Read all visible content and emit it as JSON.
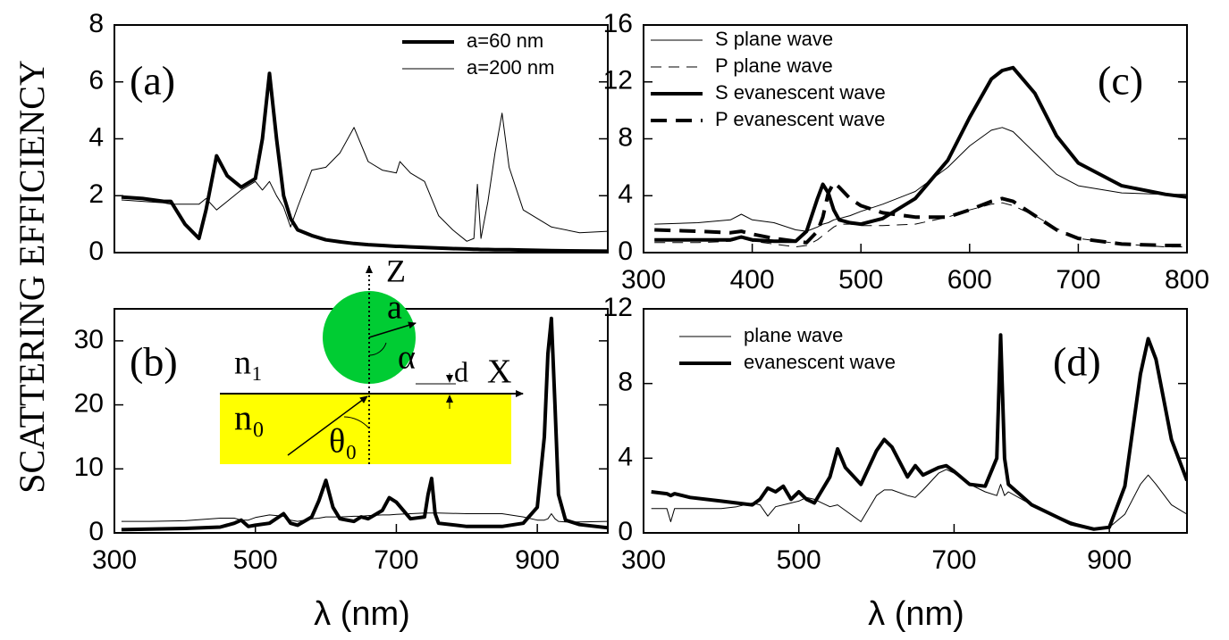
{
  "y_label": "SCATTERING EFFICIENCY",
  "diagram": {
    "labels": [
      "Z",
      "X",
      "a",
      "α",
      "d",
      "n₁",
      "n₀",
      "θ₀"
    ]
  },
  "chart_data": [
    {
      "type": "line",
      "annotation": "(a)",
      "legend": "upper right",
      "x": [
        310,
        340,
        370,
        380,
        400,
        420,
        430,
        445,
        460,
        480,
        500,
        510,
        520,
        530,
        540,
        550,
        560,
        580,
        600,
        620,
        640,
        660,
        680,
        700,
        705,
        720,
        740,
        760,
        780,
        800,
        810,
        815,
        820,
        830,
        840,
        850,
        860,
        880,
        920,
        960,
        1000
      ],
      "xlim": [
        300,
        1000
      ],
      "ylim": [
        0,
        8
      ],
      "yticks": [
        0,
        2,
        4,
        6,
        8
      ],
      "series": [
        {
          "name": "a=60 nm",
          "color": "#000000",
          "width": 4,
          "style": "solid",
          "values": [
            1.95,
            1.9,
            1.8,
            1.8,
            1.0,
            0.5,
            1.5,
            3.4,
            2.7,
            2.3,
            2.6,
            4.0,
            6.3,
            4.0,
            2.0,
            1.2,
            0.8,
            0.6,
            0.45,
            0.38,
            0.32,
            0.28,
            0.25,
            0.22,
            0.22,
            0.2,
            0.18,
            0.16,
            0.14,
            0.13,
            0.12,
            0.12,
            0.11,
            0.11,
            0.1,
            0.1,
            0.1,
            0.09,
            0.07,
            0.06,
            0.05
          ]
        },
        {
          "name": "a=200 nm",
          "color": "#000000",
          "width": 1,
          "style": "solid",
          "values": [
            1.85,
            1.8,
            1.75,
            1.7,
            1.7,
            1.7,
            1.9,
            1.5,
            1.8,
            2.2,
            2.5,
            2.2,
            2.5,
            2.0,
            1.6,
            0.9,
            1.6,
            2.9,
            3.0,
            3.5,
            4.4,
            3.2,
            2.9,
            2.8,
            3.2,
            2.8,
            2.5,
            1.3,
            0.8,
            0.4,
            0.5,
            2.4,
            0.5,
            1.8,
            3.5,
            4.9,
            3.0,
            1.5,
            0.9,
            0.7,
            0.75
          ]
        }
      ]
    },
    {
      "type": "line",
      "annotation": "(b)",
      "x_label": "λ (nm)",
      "x": [
        310,
        350,
        400,
        450,
        470,
        480,
        490,
        500,
        520,
        540,
        550,
        560,
        580,
        590,
        600,
        610,
        620,
        640,
        650,
        660,
        680,
        690,
        700,
        720,
        740,
        745,
        750,
        755,
        760,
        800,
        850,
        880,
        900,
        910,
        915,
        920,
        925,
        930,
        940,
        960,
        1000
      ],
      "xlim": [
        300,
        1000
      ],
      "xticks": [
        300,
        500,
        700,
        900
      ],
      "ylim": [
        0,
        35
      ],
      "yticks": [
        0,
        10,
        20,
        30
      ],
      "series": [
        {
          "color": "#000000",
          "width": 4,
          "style": "solid",
          "values": [
            0.5,
            0.6,
            0.7,
            0.9,
            1.5,
            2.0,
            1.0,
            1.2,
            1.5,
            3.0,
            1.5,
            1.2,
            2.5,
            5,
            8.2,
            4,
            2.2,
            1.8,
            2.5,
            2.2,
            3.5,
            5.5,
            4.8,
            2.2,
            2.5,
            6,
            8.5,
            3,
            1.5,
            1.0,
            1.0,
            1.5,
            4,
            15,
            28,
            33.5,
            20,
            6,
            2,
            1.3,
            0.8
          ]
        },
        {
          "color": "#000000",
          "width": 1,
          "style": "solid",
          "values": [
            1.8,
            1.8,
            1.9,
            2.3,
            2.3,
            2.0,
            2.0,
            2.4,
            2.8,
            2.6,
            2.0,
            1.8,
            2.2,
            2.3,
            2.5,
            2.5,
            2.5,
            2.6,
            2.6,
            2.7,
            2.8,
            2.8,
            2.9,
            3.0,
            3.1,
            3.1,
            3.1,
            3.1,
            3.1,
            3.0,
            3.0,
            2.5,
            2.0,
            2.0,
            2.2,
            3.0,
            2.2,
            1.8,
            1.7,
            1.7,
            1.8
          ]
        }
      ]
    },
    {
      "type": "line",
      "annotation": "(c)",
      "legend": "upper left",
      "x": [
        310,
        350,
        380,
        390,
        400,
        420,
        440,
        450,
        460,
        465,
        470,
        475,
        480,
        490,
        500,
        520,
        550,
        580,
        600,
        620,
        630,
        640,
        660,
        680,
        700,
        740,
        780,
        800
      ],
      "xlim": [
        300,
        800
      ],
      "xticks": [
        300,
        400,
        500,
        600,
        700,
        800
      ],
      "ylim": [
        0,
        16
      ],
      "yticks": [
        0,
        4,
        8,
        12,
        16
      ],
      "series": [
        {
          "name": "S plane wave",
          "color": "#000000",
          "width": 1,
          "style": "solid",
          "values": [
            2.0,
            2.1,
            2.3,
            2.7,
            2.3,
            2.1,
            1.6,
            1.5,
            1.8,
            2.0,
            2.1,
            2.3,
            2.4,
            2.6,
            2.9,
            3.4,
            4.3,
            6,
            7.5,
            8.6,
            8.8,
            8.5,
            7,
            5.5,
            4.7,
            4.2,
            4.1,
            4.1
          ]
        },
        {
          "name": "P plane wave",
          "color": "#000000",
          "width": 1,
          "style": "dashed",
          "values": [
            0.7,
            0.7,
            0.8,
            1.0,
            0.8,
            0.6,
            0.4,
            0.5,
            0.9,
            1.2,
            1.5,
            1.8,
            2.0,
            2.0,
            1.9,
            1.9,
            2.0,
            2.5,
            3.0,
            3.4,
            3.5,
            3.3,
            2.6,
            1.7,
            1.0,
            0.6,
            0.4,
            0.4
          ]
        },
        {
          "name": "S evanescent wave",
          "color": "#000000",
          "width": 4,
          "style": "solid",
          "values": [
            0.9,
            0.9,
            0.9,
            1.1,
            0.9,
            0.8,
            0.8,
            1.5,
            3.8,
            4.8,
            4.2,
            3.0,
            2.3,
            2.1,
            2.0,
            2.4,
            3.8,
            6.5,
            9.5,
            12.2,
            12.8,
            13.0,
            11.2,
            8.2,
            6.3,
            4.7,
            4.1,
            3.9
          ]
        },
        {
          "name": "P evanescent wave",
          "color": "#000000",
          "width": 4,
          "style": "dashed",
          "values": [
            1.6,
            1.5,
            1.4,
            1.5,
            1.3,
            1.0,
            0.8,
            0.7,
            1.5,
            2.5,
            4.2,
            4.9,
            4.6,
            3.8,
            3.3,
            2.8,
            2.5,
            2.5,
            3.0,
            3.6,
            3.8,
            3.6,
            2.6,
            1.6,
            1.0,
            0.6,
            0.5,
            0.5
          ]
        }
      ]
    },
    {
      "type": "line",
      "annotation": "(d)",
      "legend": "upper left",
      "x_label": "λ (nm)",
      "x": [
        310,
        330,
        335,
        340,
        360,
        400,
        420,
        440,
        450,
        460,
        470,
        480,
        490,
        500,
        510,
        520,
        540,
        550,
        560,
        580,
        600,
        610,
        620,
        640,
        650,
        660,
        680,
        690,
        700,
        720,
        740,
        755,
        760,
        765,
        770,
        800,
        850,
        880,
        900,
        920,
        940,
        950,
        960,
        980,
        1000
      ],
      "xlim": [
        300,
        1000
      ],
      "xticks": [
        300,
        500,
        700,
        900
      ],
      "ylim": [
        0,
        12
      ],
      "yticks": [
        0,
        4,
        8,
        12
      ],
      "series": [
        {
          "name": "plane wave",
          "color": "#000000",
          "width": 1,
          "style": "solid",
          "values": [
            1.3,
            1.3,
            0.6,
            1.3,
            1.3,
            1.3,
            1.4,
            1.6,
            1.5,
            0.9,
            1.4,
            1.5,
            1.6,
            1.7,
            1.9,
            1.8,
            1.4,
            1.5,
            1.2,
            0.6,
            2.0,
            2.3,
            2.3,
            2.0,
            1.9,
            2.3,
            3.2,
            3.4,
            3.2,
            2.6,
            2.2,
            2.0,
            2.6,
            2.0,
            2.2,
            1.5,
            0.6,
            0.2,
            0.3,
            1.0,
            2.6,
            3.1,
            2.6,
            1.5,
            1.0
          ]
        },
        {
          "name": "evanescent wave",
          "color": "#000000",
          "width": 4,
          "style": "solid",
          "values": [
            2.2,
            2.1,
            2.0,
            2.1,
            1.9,
            1.7,
            1.6,
            1.5,
            1.8,
            2.4,
            2.2,
            2.5,
            1.8,
            2.2,
            1.8,
            1.6,
            3.0,
            4.5,
            3.5,
            2.6,
            4.4,
            5.0,
            4.6,
            3.0,
            3.6,
            3.1,
            3.5,
            3.6,
            3.3,
            2.6,
            2.5,
            4,
            10.6,
            4,
            2.6,
            1.5,
            0.5,
            0.2,
            0.3,
            2.5,
            8.5,
            10.4,
            9.3,
            5,
            2.8
          ]
        }
      ]
    }
  ]
}
